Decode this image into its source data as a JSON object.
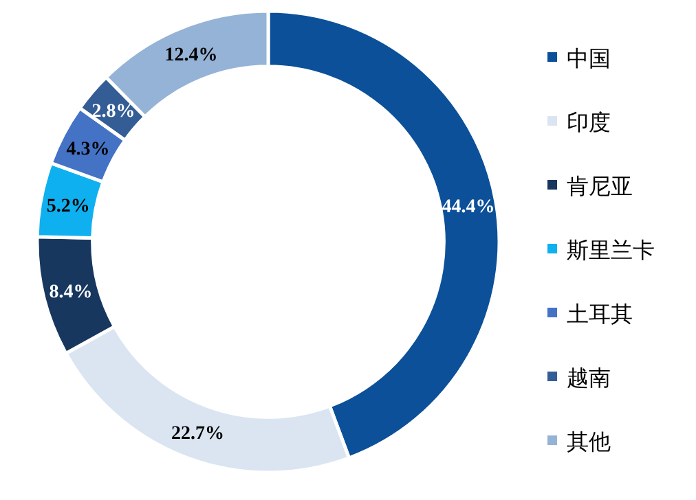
{
  "chart_data": {
    "type": "donut",
    "categories": [
      "中国",
      "印度",
      "肯尼亚",
      "斯里兰卡",
      "土耳其",
      "越南",
      "其他"
    ],
    "values": [
      44.4,
      22.7,
      8.4,
      5.2,
      4.3,
      2.8,
      12.4
    ],
    "value_labels": [
      "44.4%",
      "22.7%",
      "8.4%",
      "5.2%",
      "4.3%",
      "2.8%",
      "12.4%"
    ],
    "colors": [
      "#0b5099",
      "#dbe5f1",
      "#17375e",
      "#0fb0ef",
      "#4473c5",
      "#355d95",
      "#95b3d7"
    ],
    "legend": "right"
  }
}
